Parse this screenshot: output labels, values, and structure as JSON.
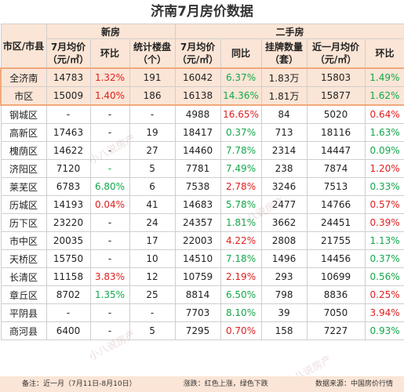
{
  "title": "济南7月房价数据",
  "headers": {
    "region": "市区/市县",
    "new_group": "新房",
    "second_group": "二手房",
    "new_price": "7月均价（元/㎡）",
    "new_mom": "环比",
    "new_units": "统计楼盘（个）",
    "sec_price": "7月均价（元/㎡）",
    "sec_yoy": "同比",
    "sec_listings": "挂牌数量（套）",
    "sec_recent": "近一月均价（元/㎡）",
    "sec_mom": "环比"
  },
  "rows": [
    {
      "region": "全济南",
      "np": "14783",
      "nm": "1.32%",
      "nu": "191",
      "sp": "16042",
      "sy": "6.37%",
      "sl": "1.83万",
      "sr": "15803",
      "sm": "1.49%"
    },
    {
      "region": "市区",
      "np": "15009",
      "nm": "1.40%",
      "nu": "186",
      "sp": "16138",
      "sy": "14.36%",
      "sl": "1.81万",
      "sr": "15877",
      "sm": "1.62%"
    },
    {
      "region": "钢城区",
      "np": "-",
      "nm": "-",
      "nu": "-",
      "sp": "4988",
      "sy": "16.65%",
      "sl": "84",
      "sr": "5020",
      "sm": "0.64%"
    },
    {
      "region": "高新区",
      "np": "17463",
      "nm": "-",
      "nu": "19",
      "sp": "18417",
      "sy": "0.37%",
      "sl": "713",
      "sr": "18116",
      "sm": "1.63%"
    },
    {
      "region": "槐荫区",
      "np": "14622",
      "nm": "-",
      "nu": "27",
      "sp": "14460",
      "sy": "7.78%",
      "sl": "2314",
      "sr": "14447",
      "sm": "0.09%"
    },
    {
      "region": "济阳区",
      "np": "7120",
      "nm": "-",
      "nu": "5",
      "sp": "7781",
      "sy": "7.49%",
      "sl": "238",
      "sr": "7874",
      "sm": "1.20%"
    },
    {
      "region": "莱芜区",
      "np": "6783",
      "nm": "6.80%",
      "nu": "6",
      "sp": "7538",
      "sy": "2.78%",
      "sl": "3246",
      "sr": "7513",
      "sm": "0.33%"
    },
    {
      "region": "历城区",
      "np": "14193",
      "nm": "0.04%",
      "nu": "41",
      "sp": "14683",
      "sy": "5.78%",
      "sl": "2477",
      "sr": "14766",
      "sm": "0.57%"
    },
    {
      "region": "历下区",
      "np": "23220",
      "nm": "-",
      "nu": "24",
      "sp": "24357",
      "sy": "1.81%",
      "sl": "3662",
      "sr": "24451",
      "sm": "0.39%"
    },
    {
      "region": "市中区",
      "np": "20035",
      "nm": "-",
      "nu": "17",
      "sp": "22003",
      "sy": "4.22%",
      "sl": "2808",
      "sr": "21755",
      "sm": "1.13%"
    },
    {
      "region": "天桥区",
      "np": "15750",
      "nm": "-",
      "nu": "10",
      "sp": "14510",
      "sy": "7.18%",
      "sl": "1496",
      "sr": "14456",
      "sm": "0.37%"
    },
    {
      "region": "长清区",
      "np": "11158",
      "nm": "3.83%",
      "nu": "12",
      "sp": "10759",
      "sy": "2.19%",
      "sl": "293",
      "sr": "10699",
      "sm": "0.56%"
    },
    {
      "region": "章丘区",
      "np": "8702",
      "nm": "1.35%",
      "nu": "25",
      "sp": "8814",
      "sy": "6.50%",
      "sl": "798",
      "sr": "8836",
      "sm": "0.25%"
    },
    {
      "region": "平阴县",
      "np": "-",
      "nm": "-",
      "nu": "-",
      "sp": "7703",
      "sy": "8.10%",
      "sl": "39",
      "sr": "7050",
      "sm": "3.94%"
    },
    {
      "region": "商河县",
      "np": "6400",
      "nm": "-",
      "nu": "5",
      "sp": "7295",
      "sy": "0.70%",
      "sl": "158",
      "sr": "7227",
      "sm": "0.93%"
    }
  ],
  "colors": {
    "rows": [
      {
        "nm": "up",
        "sy": "down",
        "sm": "down"
      },
      {
        "nm": "up",
        "sy": "down",
        "sm": "down"
      },
      {
        "nm": "",
        "sy": "up",
        "sm": "up"
      },
      {
        "nm": "",
        "sy": "down",
        "sm": "down"
      },
      {
        "nm": "",
        "sy": "down",
        "sm": "down"
      },
      {
        "nm": "down",
        "sy": "down",
        "sm": "up"
      },
      {
        "nm": "down",
        "sy": "up",
        "sm": "down"
      },
      {
        "nm": "up",
        "sy": "down",
        "sm": "up"
      },
      {
        "nm": "",
        "sy": "down",
        "sm": "up"
      },
      {
        "nm": "",
        "sy": "up",
        "sm": "down"
      },
      {
        "nm": "",
        "sy": "down",
        "sm": "down"
      },
      {
        "nm": "up",
        "sy": "up",
        "sm": "down"
      },
      {
        "nm": "down",
        "sy": "down",
        "sm": "up"
      },
      {
        "nm": "",
        "sy": "down",
        "sm": "up"
      },
      {
        "nm": "",
        "sy": "up",
        "sm": "down"
      }
    ],
    "up": "#e02020",
    "down": "#13a84a",
    "header_bg": "#fbe5d6"
  },
  "footer": {
    "note": "备注：近一月（7月11日-8月10日）",
    "legend": "涨跌：红色上涨，绿色下跌",
    "source": "数据来源：中国房价行情"
  },
  "watermark": "小八说房产"
}
